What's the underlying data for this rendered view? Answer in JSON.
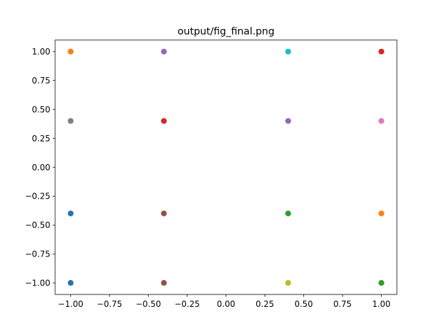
{
  "chart_data": {
    "type": "scatter",
    "title": "output/fig_final.png",
    "xlabel": "",
    "ylabel": "",
    "xlim": [
      -1.1,
      1.1
    ],
    "ylim": [
      -1.1,
      1.1
    ],
    "grid": false,
    "legend": "none",
    "x_ticks": [
      -1.0,
      -0.75,
      -0.5,
      -0.25,
      0.0,
      0.25,
      0.5,
      0.75,
      1.0
    ],
    "x_tick_labels": [
      "−1.00",
      "−0.75",
      "−0.50",
      "−0.25",
      "0.00",
      "0.25",
      "0.50",
      "0.75",
      "1.00"
    ],
    "y_ticks": [
      -1.0,
      -0.75,
      -0.5,
      -0.25,
      0.0,
      0.25,
      0.5,
      0.75,
      1.0
    ],
    "y_tick_labels": [
      "−1.00",
      "−0.75",
      "−0.50",
      "−0.25",
      "0.00",
      "0.25",
      "0.50",
      "0.75",
      "1.00"
    ],
    "points": [
      {
        "x": -1.0,
        "y": 1.0,
        "color": "#ff7f0e"
      },
      {
        "x": -0.4,
        "y": 1.0,
        "color": "#9467bd"
      },
      {
        "x": 0.4,
        "y": 1.0,
        "color": "#17becf"
      },
      {
        "x": 1.0,
        "y": 1.0,
        "color": "#d62728"
      },
      {
        "x": -1.0,
        "y": 0.4,
        "color": "#7f7f7f"
      },
      {
        "x": -0.4,
        "y": 0.4,
        "color": "#d62728"
      },
      {
        "x": 0.4,
        "y": 0.4,
        "color": "#9467bd"
      },
      {
        "x": 1.0,
        "y": 0.4,
        "color": "#e377c2"
      },
      {
        "x": -1.0,
        "y": -0.4,
        "color": "#1f77b4"
      },
      {
        "x": -0.4,
        "y": -0.4,
        "color": "#8c564b"
      },
      {
        "x": 0.4,
        "y": -0.4,
        "color": "#2ca02c"
      },
      {
        "x": 1.0,
        "y": -0.4,
        "color": "#ff7f0e"
      },
      {
        "x": -1.0,
        "y": -1.0,
        "color": "#1f77b4"
      },
      {
        "x": -0.4,
        "y": -1.0,
        "color": "#8c564b"
      },
      {
        "x": 0.4,
        "y": -1.0,
        "color": "#bcbd22"
      },
      {
        "x": 1.0,
        "y": -1.0,
        "color": "#2ca02c"
      }
    ]
  }
}
